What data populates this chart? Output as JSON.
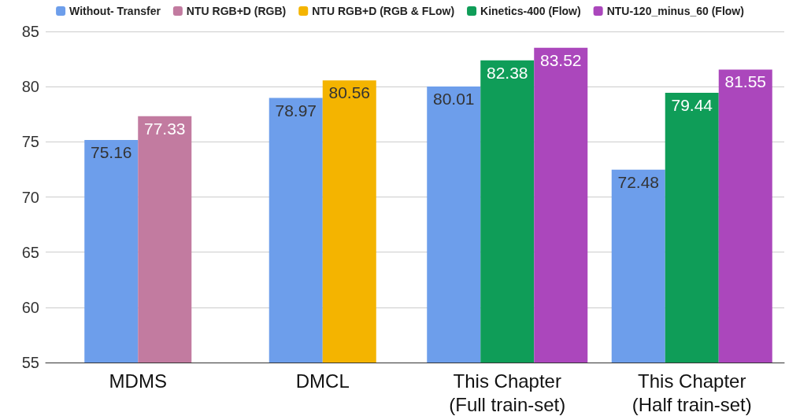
{
  "chart_data": {
    "type": "bar",
    "categories": [
      "MDMS",
      "DMCL",
      "This Chapter\n(Full train-set)",
      "This Chapter\n(Half train-set)"
    ],
    "series": [
      {
        "name": "Without- Transfer",
        "color": "#6d9eeb",
        "values": [
          75.16,
          78.97,
          80.01,
          72.48
        ]
      },
      {
        "name": "NTU RGB+D (RGB)",
        "color": "#c27ba0",
        "values": [
          77.33,
          null,
          null,
          null
        ]
      },
      {
        "name": "NTU RGB+D (RGB & FLow)",
        "color": "#f4b400",
        "values": [
          null,
          80.56,
          null,
          null
        ]
      },
      {
        "name": "Kinetics-400 (Flow)",
        "color": "#0f9d58",
        "values": [
          null,
          null,
          82.38,
          79.44
        ]
      },
      {
        "name": "NTU-120_minus_60 (Flow)",
        "color": "#ab47bc",
        "values": [
          null,
          null,
          83.52,
          81.55
        ]
      }
    ],
    "ylim": [
      55,
      85
    ],
    "yticks": [
      55,
      60,
      65,
      70,
      75,
      80,
      85
    ],
    "grid": "y",
    "legend": "top",
    "data_labels": true
  }
}
